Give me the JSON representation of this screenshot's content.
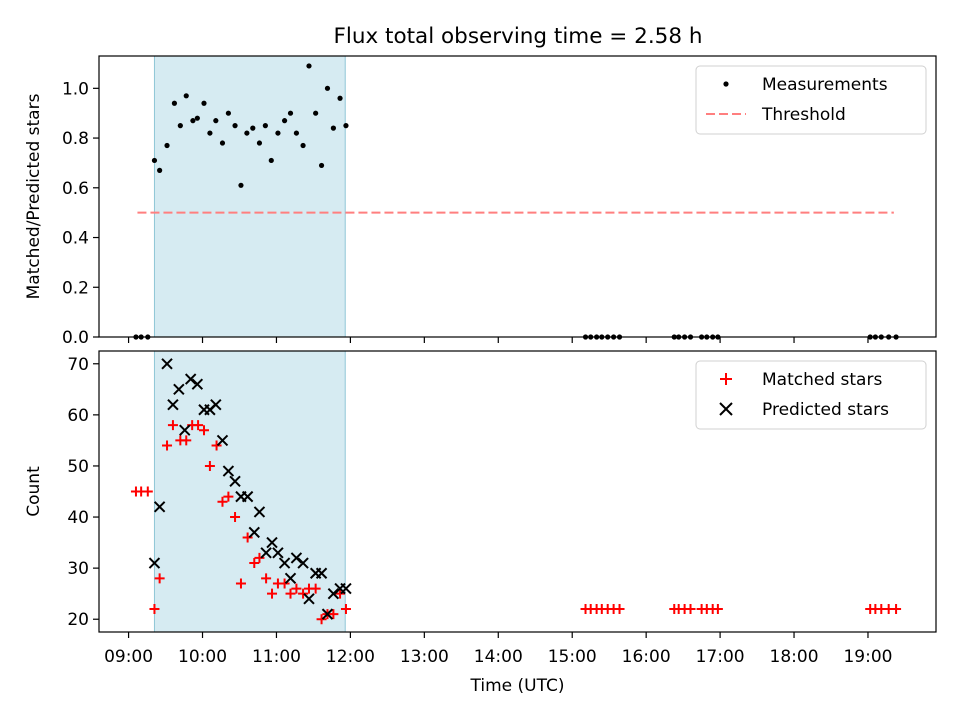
{
  "figure_title": "Flux total observing time = 2.58 h",
  "chart_data": [
    {
      "type": "scatter",
      "title": "",
      "xlabel": "",
      "ylabel": "Matched/Predicted stars",
      "x_unit": "hours UTC",
      "xlim": [
        8.6,
        19.92
      ],
      "ylim": [
        0,
        1.13
      ],
      "yticks": [
        0.0,
        0.2,
        0.4,
        0.6,
        0.8,
        1.0
      ],
      "ytick_labels": [
        "0.0",
        "0.2",
        "0.4",
        "0.6",
        "0.8",
        "1.0"
      ],
      "xtick_labels_shown": false,
      "grid": false,
      "legend": "top-right",
      "shaded_span": {
        "x0": 9.35,
        "x1": 11.93,
        "color": "#add8e6"
      },
      "series": [
        {
          "name": "Measurements",
          "marker": "dot",
          "color": "#000000",
          "x": [
            9.35,
            9.42,
            9.52,
            9.62,
            9.7,
            9.78,
            9.87,
            9.93,
            10.02,
            10.1,
            10.18,
            10.27,
            10.35,
            10.44,
            10.52,
            10.6,
            10.68,
            10.77,
            10.85,
            10.93,
            11.02,
            11.11,
            11.19,
            11.27,
            11.36,
            11.44,
            11.53,
            11.61,
            11.69,
            11.77,
            11.86,
            11.94,
            9.1,
            9.17,
            9.26,
            15.18,
            15.25,
            15.33,
            15.4,
            15.48,
            15.56,
            15.64,
            16.38,
            16.44,
            16.52,
            16.6,
            16.75,
            16.82,
            16.9,
            16.97,
            19.03,
            19.1,
            19.18,
            19.28,
            19.38
          ],
          "y": [
            0.71,
            0.67,
            0.77,
            0.94,
            0.85,
            0.97,
            0.87,
            0.88,
            0.94,
            0.82,
            0.87,
            0.78,
            0.9,
            0.85,
            0.61,
            0.82,
            0.84,
            0.78,
            0.85,
            0.71,
            0.82,
            0.87,
            0.9,
            0.82,
            0.77,
            1.09,
            0.9,
            0.69,
            1.0,
            0.84,
            0.96,
            0.85,
            0,
            0,
            0,
            0,
            0,
            0,
            0,
            0,
            0,
            0,
            0,
            0,
            0,
            0,
            0,
            0,
            0,
            0,
            0,
            0,
            0,
            0,
            0
          ]
        },
        {
          "name": "Threshold",
          "style": "dashed",
          "color": "#ff7f7f",
          "x": [
            9.12,
            19.35
          ],
          "y": [
            0.5,
            0.5
          ]
        }
      ]
    },
    {
      "type": "scatter",
      "title": "",
      "xlabel": "Time (UTC)",
      "ylabel": "Count",
      "x_unit": "hours UTC",
      "xlim": [
        8.6,
        19.92
      ],
      "ylim": [
        17.5,
        72.5
      ],
      "yticks": [
        20,
        30,
        40,
        50,
        60,
        70
      ],
      "ytick_labels": [
        "20",
        "30",
        "40",
        "50",
        "60",
        "70"
      ],
      "xticks": [
        9,
        10,
        11,
        12,
        13,
        14,
        15,
        16,
        17,
        18,
        19
      ],
      "xtick_labels": [
        "09:00",
        "10:00",
        "11:00",
        "12:00",
        "13:00",
        "14:00",
        "15:00",
        "16:00",
        "17:00",
        "18:00",
        "19:00"
      ],
      "grid": false,
      "legend": "top-right",
      "shaded_span": {
        "x0": 9.35,
        "x1": 11.93,
        "color": "#add8e6"
      },
      "series": [
        {
          "name": "Matched stars",
          "marker": "plus",
          "color": "#ff0000",
          "x": [
            9.1,
            9.17,
            9.26,
            9.35,
            9.42,
            9.52,
            9.6,
            9.7,
            9.78,
            9.86,
            9.94,
            10.02,
            10.1,
            10.19,
            10.27,
            10.35,
            10.44,
            10.52,
            10.61,
            10.7,
            10.77,
            10.86,
            10.94,
            11.02,
            11.11,
            11.19,
            11.27,
            11.36,
            11.44,
            11.53,
            11.61,
            11.69,
            11.77,
            11.86,
            11.94,
            15.18,
            15.25,
            15.33,
            15.4,
            15.48,
            15.56,
            15.64,
            16.38,
            16.44,
            16.52,
            16.6,
            16.75,
            16.82,
            16.9,
            16.97,
            19.03,
            19.1,
            19.18,
            19.28,
            19.38
          ],
          "y": [
            45,
            45,
            45,
            22,
            28,
            54,
            58,
            55,
            55,
            58,
            58,
            57,
            50,
            54,
            43,
            44,
            40,
            27,
            36,
            31,
            32,
            28,
            25,
            27,
            27,
            25,
            26,
            25,
            26,
            26,
            20,
            21,
            21,
            25,
            22,
            22,
            22,
            22,
            22,
            22,
            22,
            22,
            22,
            22,
            22,
            22,
            22,
            22,
            22,
            22,
            22,
            22,
            22,
            22,
            22
          ]
        },
        {
          "name": "Predicted stars",
          "marker": "x",
          "color": "#000000",
          "x": [
            9.35,
            9.42,
            9.52,
            9.6,
            9.68,
            9.76,
            9.84,
            9.93,
            10.02,
            10.1,
            10.18,
            10.27,
            10.35,
            10.44,
            10.52,
            10.61,
            10.7,
            10.77,
            10.86,
            10.94,
            11.02,
            11.11,
            11.19,
            11.27,
            11.36,
            11.44,
            11.53,
            11.61,
            11.69,
            11.77,
            11.86,
            11.94
          ],
          "y": [
            31,
            42,
            70,
            62,
            65,
            57,
            67,
            66,
            61,
            61,
            62,
            55,
            49,
            47,
            44,
            44,
            37,
            41,
            33,
            35,
            33,
            31,
            28,
            32,
            31,
            24,
            29,
            29,
            21,
            25,
            26,
            26
          ]
        }
      ]
    }
  ]
}
